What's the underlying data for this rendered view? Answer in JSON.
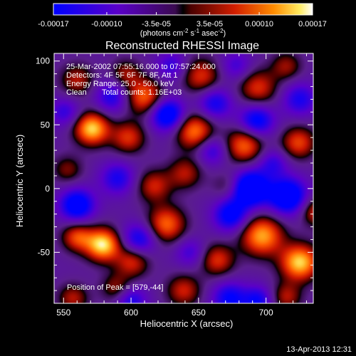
{
  "chart_data": {
    "type": "heatmap",
    "title": "Reconstructed RHESSI Image",
    "xlabel": "Heliocentric X (arcsec)",
    "ylabel": "Heliocentric Y (arcsec)",
    "x_range": [
      543,
      735
    ],
    "y_range": [
      -90,
      106
    ],
    "x_ticks": [
      550,
      600,
      650,
      700
    ],
    "y_ticks": [
      -50,
      0,
      50,
      100
    ],
    "colorbar": {
      "range": [
        -0.00017,
        0.00017
      ],
      "ticks": [
        "-0.00017",
        "-0.00010",
        "-3.5e-05",
        "3.5e-05",
        "0.00010",
        "0.00017"
      ],
      "tick_values": [
        -0.00017,
        -0.0001,
        -3.5e-05,
        3.5e-05,
        0.0001,
        0.00017
      ],
      "units_text": "(photons cm",
      "units_exp1": "-2",
      "units_mid": " s",
      "units_exp2": "-1",
      "units_mid2": " asec",
      "units_exp3": "-2",
      "units_end": ")"
    },
    "annotations": [
      "25-Mar-2002 07:55:16.000 to 07:57:24.000",
      "Detectors: 4F 5F 6F 7F 8F, Att 1",
      "Energy Range: 25.0 - 50.0 keV",
      "Clean",
      "Total counts: 1.16E+03"
    ],
    "peak_label": "Position of Peak = [579,-44]",
    "peak": [
      579,
      -44
    ],
    "timestamp": "13-Apr-2013 12:31",
    "sources": [
      {
        "x": 579,
        "y": -44,
        "v": 1.0,
        "s": 9
      },
      {
        "x": 571,
        "y": 47,
        "v": 0.95,
        "s": 9
      },
      {
        "x": 598,
        "y": 40,
        "v": 0.55,
        "s": 9
      },
      {
        "x": 560,
        "y": -38,
        "v": 0.6,
        "s": 8
      },
      {
        "x": 626,
        "y": -28,
        "v": 0.7,
        "s": 10
      },
      {
        "x": 617,
        "y": 2,
        "v": 0.5,
        "s": 9
      },
      {
        "x": 610,
        "y": 72,
        "v": 0.7,
        "s": 10
      },
      {
        "x": 647,
        "y": 45,
        "v": 0.75,
        "s": 10
      },
      {
        "x": 652,
        "y": 88,
        "v": 0.55,
        "s": 10
      },
      {
        "x": 684,
        "y": 34,
        "v": 0.7,
        "s": 10
      },
      {
        "x": 694,
        "y": 79,
        "v": 0.55,
        "s": 10
      },
      {
        "x": 724,
        "y": 36,
        "v": 0.6,
        "s": 9
      },
      {
        "x": 697,
        "y": -37,
        "v": 0.85,
        "s": 11
      },
      {
        "x": 725,
        "y": -58,
        "v": 0.95,
        "s": 10
      },
      {
        "x": 737,
        "y": -18,
        "v": 0.55,
        "s": 8
      },
      {
        "x": 664,
        "y": -56,
        "v": 0.55,
        "s": 9
      },
      {
        "x": 639,
        "y": -80,
        "v": 0.5,
        "s": 9
      },
      {
        "x": 601,
        "y": -57,
        "v": 0.55,
        "s": 9
      },
      {
        "x": 589,
        "y": -78,
        "v": 0.4,
        "s": 8
      },
      {
        "x": 640,
        "y": 12,
        "v": 0.45,
        "s": 9
      },
      {
        "x": 560,
        "y": 85,
        "v": 0.45,
        "s": 9
      },
      {
        "x": 596,
        "y": 90,
        "v": 0.4,
        "s": 8
      },
      {
        "x": 715,
        "y": 96,
        "v": 0.4,
        "s": 8
      },
      {
        "x": 553,
        "y": 15,
        "v": 0.35,
        "s": 8
      },
      {
        "x": 672,
        "y": 2,
        "v": 0.3,
        "s": 8
      },
      {
        "x": 557,
        "y": -86,
        "v": 0.45,
        "s": 8
      },
      {
        "x": 715,
        "y": -85,
        "v": 0.45,
        "s": 8
      },
      {
        "x": 627,
        "y": 58,
        "v": -0.85,
        "s": 9
      },
      {
        "x": 688,
        "y": 0,
        "v": -1.0,
        "s": 10
      },
      {
        "x": 716,
        "y": -6,
        "v": -0.9,
        "s": 10
      },
      {
        "x": 674,
        "y": -21,
        "v": -0.7,
        "s": 9
      },
      {
        "x": 560,
        "y": -13,
        "v": -0.8,
        "s": 9
      },
      {
        "x": 590,
        "y": 8,
        "v": -0.5,
        "s": 9
      },
      {
        "x": 606,
        "y": -40,
        "v": -0.6,
        "s": 9
      },
      {
        "x": 586,
        "y": 72,
        "v": -0.5,
        "s": 9
      },
      {
        "x": 693,
        "y": 53,
        "v": -0.7,
        "s": 9
      },
      {
        "x": 725,
        "y": 70,
        "v": -0.5,
        "s": 9
      },
      {
        "x": 662,
        "y": 67,
        "v": -0.55,
        "s": 9
      },
      {
        "x": 660,
        "y": 30,
        "v": -0.45,
        "s": 8
      },
      {
        "x": 551,
        "y": 60,
        "v": -0.4,
        "s": 8
      },
      {
        "x": 600,
        "y": -88,
        "v": -0.5,
        "s": 8
      },
      {
        "x": 673,
        "y": -86,
        "v": -0.6,
        "s": 9
      },
      {
        "x": 694,
        "y": -88,
        "v": -0.55,
        "s": 8
      },
      {
        "x": 644,
        "y": -50,
        "v": -0.35,
        "s": 8
      },
      {
        "x": 705,
        "y": 20,
        "v": -0.4,
        "s": 8
      },
      {
        "x": 630,
        "y": 96,
        "v": -0.4,
        "s": 8
      },
      {
        "x": 678,
        "y": 96,
        "v": -0.35,
        "s": 8
      }
    ]
  }
}
